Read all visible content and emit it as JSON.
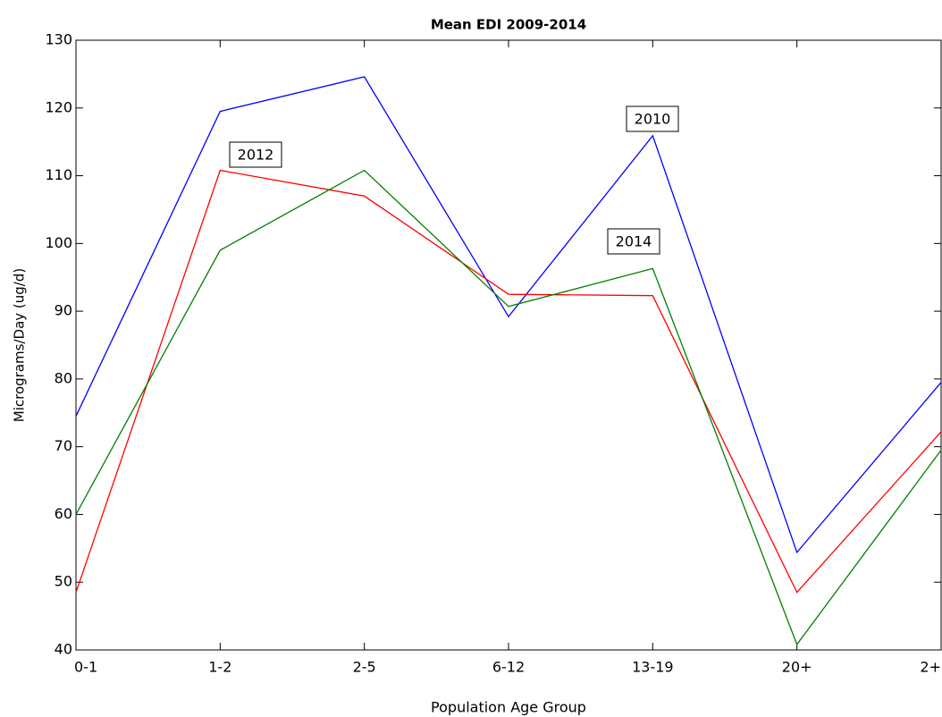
{
  "chart_data": {
    "type": "line",
    "title": "Mean EDI 2009-2014",
    "x_label": "Population Age Group",
    "y_label": "Micrograms/Day (ug/d)",
    "categories": [
      "0-1",
      "1-2",
      "2-5",
      "6-12",
      "13-19",
      "20+",
      "2+"
    ],
    "series": [
      {
        "name": "2010",
        "color": "#0000ff",
        "values": [
          74.5,
          119.5,
          124.6,
          89.2,
          115.9,
          54.4,
          79.5
        ]
      },
      {
        "name": "2012",
        "color": "#ff0000",
        "values": [
          48.5,
          110.8,
          107,
          92.5,
          92.3,
          48.5,
          72.2
        ]
      },
      {
        "name": "2014",
        "color": "#008000",
        "values": [
          60,
          99,
          110.8,
          90.7,
          96.3,
          40.8,
          69.5
        ]
      }
    ],
    "ylim": [
      40,
      130
    ],
    "yticks": [
      40,
      50,
      60,
      70,
      80,
      90,
      100,
      110,
      120,
      130
    ],
    "grid": false
  }
}
